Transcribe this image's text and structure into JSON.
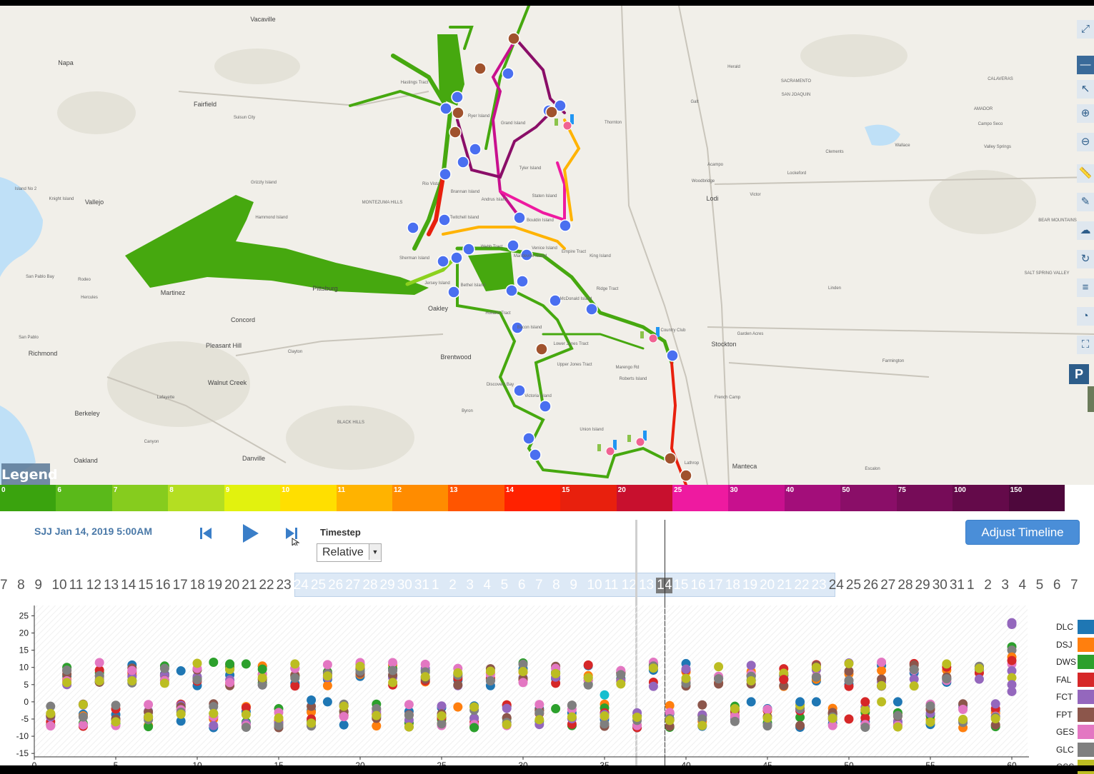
{
  "map": {
    "legend_button": "Legend",
    "tools": [
      "expand-icon",
      "zoom-out-icon",
      "pointer-icon",
      "zoom-in-icon",
      "zoom-minus-icon",
      "ruler-icon",
      "pencil-icon",
      "cloud-icon",
      "refresh-icon",
      "layers-icon",
      "clock-icon",
      "box-select-icon"
    ],
    "p_button": "P",
    "labels": [
      {
        "t": "Vacaville"
      },
      {
        "t": "Napa"
      },
      {
        "t": "Fairfield"
      },
      {
        "t": "Suisun City"
      },
      {
        "t": "Vallejo"
      },
      {
        "t": "Martinez"
      },
      {
        "t": "Pittsburg"
      },
      {
        "t": "Concord"
      },
      {
        "t": "Oakley"
      },
      {
        "t": "Brentwood"
      },
      {
        "t": "Pleasant Hill"
      },
      {
        "t": "Walnut Creek"
      },
      {
        "t": "Richmond"
      },
      {
        "t": "Berkeley"
      },
      {
        "t": "Oakland"
      },
      {
        "t": "Danville"
      },
      {
        "t": "Canyon"
      },
      {
        "t": "Lafayette"
      },
      {
        "t": "San Pablo"
      },
      {
        "t": "Clayton"
      },
      {
        "t": "Stockton"
      },
      {
        "t": "Lodi"
      },
      {
        "t": "Manteca"
      },
      {
        "t": "Lathrop"
      },
      {
        "t": "Galt"
      },
      {
        "t": "Thornton"
      },
      {
        "t": "Acampo"
      },
      {
        "t": "Woodbridge"
      },
      {
        "t": "Victor"
      },
      {
        "t": "Lockeford"
      },
      {
        "t": "Clements"
      },
      {
        "t": "Wallace"
      },
      {
        "t": "Linden"
      },
      {
        "t": "Farmington"
      },
      {
        "t": "Escalon"
      },
      {
        "t": "French Camp"
      },
      {
        "t": "Garden Acres"
      },
      {
        "t": "Country Club"
      },
      {
        "t": "MONTEZUMA HILLS"
      },
      {
        "t": "BLACK HILLS"
      },
      {
        "t": "Herald"
      },
      {
        "t": "SACRAMENTO"
      },
      {
        "t": "SAN JOAQUIN"
      },
      {
        "t": "CALAVERAS"
      },
      {
        "t": "AMADOR"
      },
      {
        "t": "Campo Seco"
      },
      {
        "t": "Valley Springs"
      },
      {
        "t": "BEAR MOUNTAINS"
      },
      {
        "t": "SALT SPRING VALLEY"
      },
      {
        "t": "Rio Vista"
      },
      {
        "t": "Ryer Island"
      },
      {
        "t": "Grand Island"
      },
      {
        "t": "Tyler Island"
      },
      {
        "t": "Staten Island"
      },
      {
        "t": "Bouldin Island"
      },
      {
        "t": "Twitchell Island"
      },
      {
        "t": "Webb Tract"
      },
      {
        "t": "Venice Island"
      },
      {
        "t": "Empire Tract"
      },
      {
        "t": "King Island"
      },
      {
        "t": "Mandeville Island"
      },
      {
        "t": "McDonald Island"
      },
      {
        "t": "Bethel Island"
      },
      {
        "t": "Holland Tract"
      },
      {
        "t": "Bacon Island"
      },
      {
        "t": "Lower Jones Tract"
      },
      {
        "t": "Upper Jones Tract"
      },
      {
        "t": "Roberts Island"
      },
      {
        "t": "Victoria Island"
      },
      {
        "t": "Union Island"
      },
      {
        "t": "Discovery Bay"
      },
      {
        "t": "Byron"
      },
      {
        "t": "Sherman Island"
      },
      {
        "t": "Brannan Island"
      },
      {
        "t": "Andrus Island"
      },
      {
        "t": "Jersey Island"
      },
      {
        "t": "Hastings Tract"
      },
      {
        "t": "Marengo Rd"
      },
      {
        "t": "Ridge Tract"
      },
      {
        "t": "San Pablo Bay"
      },
      {
        "t": "Rodeo"
      },
      {
        "t": "Hercules"
      },
      {
        "t": "Grizzly Island"
      },
      {
        "t": "Hammond Island"
      },
      {
        "t": "Knight Island"
      },
      {
        "t": "Island No 2"
      }
    ]
  },
  "color_scale": [
    {
      "label": "0",
      "color": "#3aa30e"
    },
    {
      "label": "6",
      "color": "#5ab91a"
    },
    {
      "label": "7",
      "color": "#86cc1e"
    },
    {
      "label": "8",
      "color": "#b4de22"
    },
    {
      "label": "9",
      "color": "#e2f20e"
    },
    {
      "label": "10",
      "color": "#ffdf00"
    },
    {
      "label": "11",
      "color": "#ffb300"
    },
    {
      "label": "12",
      "color": "#ff8c00"
    },
    {
      "label": "13",
      "color": "#ff5500"
    },
    {
      "label": "14",
      "color": "#ff2200"
    },
    {
      "label": "15",
      "color": "#e8200d"
    },
    {
      "label": "20",
      "color": "#c8102e"
    },
    {
      "label": "25",
      "color": "#ee1aa0"
    },
    {
      "label": "30",
      "color": "#c8108e"
    },
    {
      "label": "40",
      "color": "#a30e7a"
    },
    {
      "label": "50",
      "color": "#8a0e68"
    },
    {
      "label": "75",
      "color": "#760c58"
    },
    {
      "label": "100",
      "color": "#640a4a"
    },
    {
      "label": "150",
      "color": "#4e083c"
    }
  ],
  "timeline": {
    "current_time": "SJJ Jan 14, 2019 5:00AM",
    "timestep_label": "Timestep",
    "timestep_value": "Relative",
    "adjust_button": "Adjust Timeline",
    "ticks": [
      "7",
      "8",
      "9",
      "10",
      "11",
      "12",
      "13",
      "14",
      "15",
      "16",
      "17",
      "18",
      "19",
      "20",
      "21",
      "22",
      "23",
      "24",
      "25",
      "26",
      "27",
      "28",
      "29",
      "30",
      "31",
      "1",
      "2",
      "3",
      "4",
      "5",
      "6",
      "7",
      "8",
      "9",
      "10",
      "11",
      "12",
      "13",
      "14",
      "15",
      "16",
      "17",
      "18",
      "19",
      "20",
      "21",
      "22",
      "23",
      "24",
      "25",
      "26",
      "27",
      "28",
      "29",
      "30",
      "31",
      "1",
      "2",
      "3",
      "4",
      "5",
      "6",
      "7"
    ],
    "brush_range": [
      17,
      47
    ],
    "selected_index": 38
  },
  "chart_data": {
    "type": "scatter",
    "x_ticks": [
      "0",
      "5",
      "10",
      "15",
      "20",
      "25",
      "30",
      "35",
      "40",
      "45",
      "50",
      "55",
      "60"
    ],
    "y_ticks": [
      "25",
      "20",
      "15",
      "10",
      "5",
      "0",
      "-5",
      "-10",
      "-15"
    ],
    "xlim": [
      0,
      62
    ],
    "ylim": [
      -16,
      28
    ],
    "series_names": [
      "DLC",
      "DSJ",
      "DWS",
      "FAL",
      "FCT",
      "FPT",
      "GES",
      "GLC",
      "GSS"
    ],
    "series_colors": [
      "#1f77b4",
      "#ff7f0e",
      "#2ca02c",
      "#d62728",
      "#9467bd",
      "#8c564b",
      "#e377c2",
      "#7f7f7f",
      "#bcbd22"
    ],
    "extra_colors": [
      "#17becf"
    ],
    "points": []
  }
}
